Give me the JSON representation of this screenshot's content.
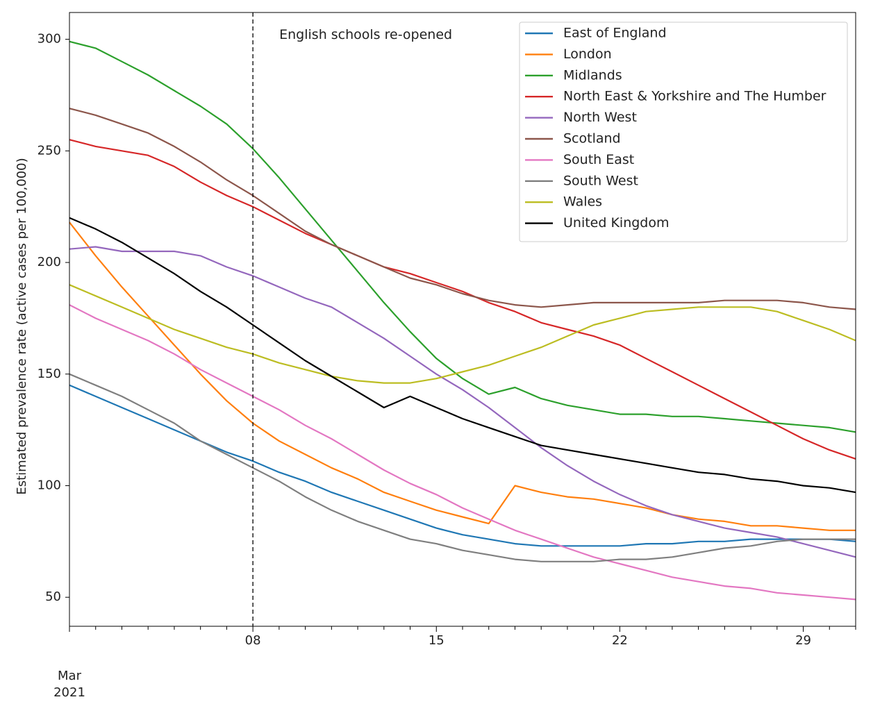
{
  "chart_data": {
    "type": "line",
    "title": "",
    "xlabel": "",
    "ylabel": "Estimated prevalence rate (active cases per 100,000)",
    "x": [
      1,
      2,
      3,
      4,
      5,
      6,
      7,
      8,
      9,
      10,
      11,
      12,
      13,
      14,
      15,
      16,
      17,
      18,
      19,
      20,
      21,
      22,
      23,
      24,
      25,
      26,
      27,
      28,
      29,
      30,
      31
    ],
    "xlim": [
      1,
      31
    ],
    "ylim": [
      37,
      312
    ],
    "yticks": [
      50,
      100,
      150,
      200,
      250,
      300
    ],
    "xticks": [
      {
        "value": 8,
        "label": "08"
      },
      {
        "value": 15,
        "label": "15"
      },
      {
        "value": 22,
        "label": "22"
      },
      {
        "value": 29,
        "label": "29"
      }
    ],
    "xtick_month_label": [
      "Mar",
      "2021"
    ],
    "annotation": {
      "x": 8,
      "text": "English schools re-opened",
      "style": "dashed vertical line"
    },
    "legend_position": "top-right",
    "grid": false,
    "series": [
      {
        "name": "East of England",
        "color": "#1f77b4",
        "values": [
          145,
          140,
          135,
          130,
          125,
          120,
          115,
          111,
          106,
          102,
          97,
          93,
          89,
          85,
          81,
          78,
          76,
          74,
          73,
          73,
          73,
          73,
          74,
          74,
          75,
          75,
          76,
          76,
          76,
          76,
          75
        ]
      },
      {
        "name": "London",
        "color": "#ff7f0e",
        "values": [
          218,
          203,
          189,
          176,
          163,
          150,
          138,
          128,
          120,
          114,
          108,
          103,
          97,
          93,
          89,
          86,
          83,
          100,
          97,
          95,
          94,
          92,
          90,
          87,
          85,
          84,
          82,
          82,
          81,
          80,
          80
        ]
      },
      {
        "name": "Midlands",
        "color": "#2ca02c",
        "values": [
          299,
          296,
          290,
          284,
          277,
          270,
          262,
          251,
          238,
          224,
          210,
          196,
          182,
          169,
          157,
          148,
          141,
          144,
          139,
          136,
          134,
          132,
          132,
          131,
          131,
          130,
          129,
          128,
          127,
          126,
          124
        ]
      },
      {
        "name": "North East & Yorkshire and The Humber",
        "color": "#d62728",
        "values": [
          255,
          252,
          250,
          248,
          243,
          236,
          230,
          225,
          219,
          213,
          208,
          203,
          198,
          195,
          191,
          187,
          182,
          178,
          173,
          170,
          167,
          163,
          157,
          151,
          145,
          139,
          133,
          127,
          121,
          116,
          112
        ]
      },
      {
        "name": "North West",
        "color": "#9467bd",
        "values": [
          206,
          207,
          205,
          205,
          205,
          203,
          198,
          194,
          189,
          184,
          180,
          173,
          166,
          158,
          150,
          143,
          135,
          126,
          117,
          109,
          102,
          96,
          91,
          87,
          84,
          81,
          79,
          77,
          74,
          71,
          68
        ]
      },
      {
        "name": "Scotland",
        "color": "#8c564b",
        "values": [
          269,
          266,
          262,
          258,
          252,
          245,
          237,
          230,
          222,
          214,
          208,
          203,
          198,
          193,
          190,
          186,
          183,
          181,
          180,
          181,
          182,
          182,
          182,
          182,
          182,
          183,
          183,
          183,
          182,
          180,
          179
        ]
      },
      {
        "name": "South East",
        "color": "#e377c2",
        "values": [
          181,
          175,
          170,
          165,
          159,
          152,
          146,
          140,
          134,
          127,
          121,
          114,
          107,
          101,
          96,
          90,
          85,
          80,
          76,
          72,
          68,
          65,
          62,
          59,
          57,
          55,
          54,
          52,
          51,
          50,
          49
        ]
      },
      {
        "name": "South West",
        "color": "#7f7f7f",
        "values": [
          150,
          145,
          140,
          134,
          128,
          120,
          114,
          108,
          102,
          95,
          89,
          84,
          80,
          76,
          74,
          71,
          69,
          67,
          66,
          66,
          66,
          67,
          67,
          68,
          70,
          72,
          73,
          75,
          76,
          76,
          76
        ]
      },
      {
        "name": "Wales",
        "color": "#bcbd22",
        "values": [
          190,
          185,
          180,
          175,
          170,
          166,
          162,
          159,
          155,
          152,
          149,
          147,
          146,
          146,
          148,
          151,
          154,
          158,
          162,
          167,
          172,
          175,
          178,
          179,
          180,
          180,
          180,
          178,
          174,
          170,
          165
        ]
      },
      {
        "name": "United Kingdom",
        "color": "#000000",
        "values": [
          220,
          215,
          209,
          202,
          195,
          187,
          180,
          172,
          164,
          156,
          149,
          142,
          135,
          140,
          135,
          130,
          126,
          122,
          118,
          116,
          114,
          112,
          110,
          108,
          106,
          105,
          103,
          102,
          100,
          99,
          97
        ]
      }
    ]
  }
}
